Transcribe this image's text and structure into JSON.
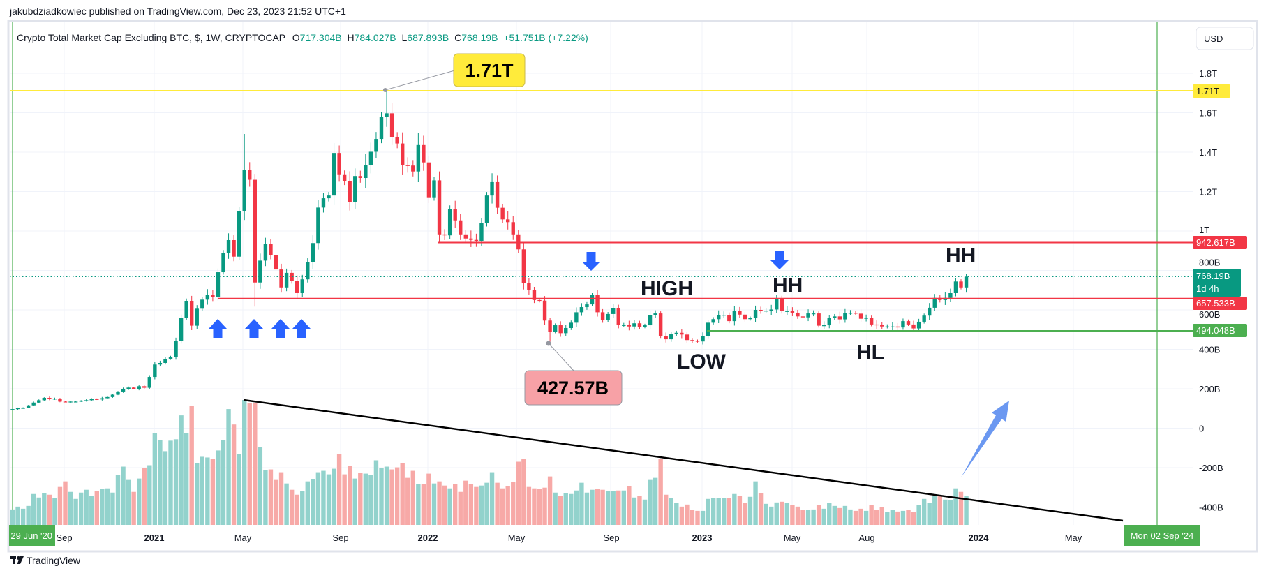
{
  "header": {
    "published": "jakubdziadkowiec published on TradingView.com, Dec 23, 2023 21:52 UTC+1"
  },
  "legend": {
    "symbol": "Crypto Total Market Cap Excluding BTC, $, 1W, CRYPTOCAP",
    "o_label": "O",
    "o_value": "717.304B",
    "h_label": "H",
    "h_value": "784.027B",
    "l_label": "L",
    "l_value": "687.893B",
    "c_label": "C",
    "c_value": "768.19B",
    "change": "+51.751B (+7.22%)"
  },
  "currency_button": "USD",
  "footer": {
    "brand": "TradingView"
  },
  "colors": {
    "bull": "#089981",
    "bear": "#f23645",
    "bull_volume": "#92d2cc",
    "bear_volume": "#f7a9a7",
    "ath_line": "#ffeb3b",
    "resistance": "#f23645",
    "support": "#4caf50",
    "arrow": "#2962ff"
  },
  "chart_data": {
    "type": "candlestick",
    "title": "Crypto Total Market Cap Excluding BTC",
    "interval": "1W",
    "unit": "B USD",
    "first_week": "29 Jun '20",
    "open_first": 95,
    "close": [
      97,
      101,
      103,
      116,
      130,
      142,
      154,
      148,
      150,
      135,
      133,
      135,
      135,
      140,
      142,
      148,
      146,
      152,
      158,
      170,
      186,
      199,
      206,
      200,
      213,
      205,
      260,
      323,
      331,
      352,
      362,
      443,
      561,
      646,
      520,
      606,
      652,
      677,
      665,
      791,
      890,
      954,
      870,
      1102,
      1310,
      1260,
      739,
      850,
      935,
      877,
      805,
      714,
      788,
      746,
      685,
      755,
      844,
      939,
      1119,
      1166,
      1180,
      1396,
      1284,
      1254,
      1148,
      1279,
      1269,
      1334,
      1402,
      1467,
      1580,
      1597,
      1475,
      1444,
      1334,
      1332,
      1302,
      1436,
      1348,
      1171,
      1257,
      983,
      978,
      1110,
      1054,
      983,
      962,
      955,
      948,
      1039,
      1180,
      1248,
      1118,
      1059,
      1045,
      983,
      907,
      738,
      700,
      650,
      647,
      546,
      490,
      522,
      482,
      508,
      535,
      588,
      614,
      628,
      675,
      588,
      549,
      579,
      608,
      523,
      523,
      516,
      532,
      514,
      522,
      574,
      582,
      467,
      451,
      476,
      484,
      475,
      447,
      443,
      440,
      469,
      535,
      553,
      575,
      575,
      543,
      595,
      576,
      553,
      558,
      600,
      595,
      596,
      602,
      658,
      594,
      594,
      586,
      567,
      562,
      582,
      582,
      520,
      522,
      558,
      567,
      552,
      585,
      585,
      581,
      555,
      561,
      526,
      523,
      516,
      516,
      516,
      511,
      543,
      526,
      506,
      540,
      571,
      611,
      661,
      650,
      661,
      685,
      744,
      714,
      768
    ],
    "wick_overrides": [
      {
        "index": 44,
        "high": 1492
      },
      {
        "index": 46,
        "low": 617
      },
      {
        "index": 71,
        "high": 1710
      },
      {
        "index": 72,
        "high": 1651
      },
      {
        "index": 102,
        "low": 427.57
      },
      {
        "index": 181,
        "high": 784.027,
        "low": 687.893
      }
    ],
    "volume": [
      22,
      26,
      23,
      27,
      44,
      39,
      45,
      43,
      38,
      54,
      62,
      47,
      37,
      46,
      50,
      41,
      48,
      51,
      52,
      46,
      71,
      83,
      64,
      47,
      66,
      81,
      85,
      131,
      121,
      105,
      120,
      122,
      156,
      131,
      170,
      88,
      97,
      96,
      94,
      106,
      121,
      165,
      143,
      101,
      178,
      173,
      174,
      111,
      78,
      79,
      64,
      75,
      59,
      50,
      43,
      48,
      62,
      65,
      75,
      77,
      72,
      80,
      101,
      72,
      84,
      66,
      74,
      73,
      71,
      92,
      81,
      83,
      79,
      82,
      88,
      67,
      77,
      58,
      58,
      73,
      59,
      62,
      56,
      52,
      58,
      47,
      63,
      58,
      54,
      56,
      60,
      75,
      60,
      52,
      55,
      61,
      90,
      94,
      54,
      52,
      51,
      53,
      69,
      46,
      41,
      45,
      44,
      49,
      60,
      46,
      50,
      51,
      50,
      48,
      48,
      49,
      49,
      55,
      39,
      41,
      36,
      64,
      67,
      94,
      43,
      38,
      31,
      26,
      29,
      21,
      20,
      20,
      37,
      38,
      38,
      38,
      38,
      44,
      41,
      31,
      40,
      62,
      45,
      30,
      26,
      32,
      33,
      31,
      28,
      26,
      21,
      21,
      22,
      28,
      23,
      31,
      27,
      24,
      27,
      22,
      20,
      23,
      20,
      28,
      21,
      25,
      18,
      21,
      19,
      20,
      21,
      18,
      28,
      37,
      31,
      41,
      42,
      36,
      35,
      52,
      47,
      41
    ],
    "y_ticks": [
      "1.8T",
      "1.6T",
      "1.4T",
      "1.2T",
      "1T",
      "800B",
      "600B",
      "400B",
      "200B",
      "0",
      "-200B",
      "-400B"
    ],
    "y_tick_values": [
      1800,
      1600,
      1400,
      1200,
      1000,
      800,
      600,
      400,
      200,
      0,
      -200,
      -400
    ],
    "x_ticks": [
      "Sep",
      "2021",
      "May",
      "Sep",
      "2022",
      "May",
      "Sep",
      "2023",
      "May",
      "Aug",
      "2024",
      "May"
    ],
    "ylim": [
      -480,
      1900
    ],
    "grid": true,
    "levels": [
      {
        "name": "ath",
        "value": 1710,
        "label": "1.71T"
      },
      {
        "name": "resistance-upper",
        "value": 942.617,
        "label": "942.617B"
      },
      {
        "name": "current",
        "value": 768.19,
        "label": "768.19B",
        "countdown": "1d 4h"
      },
      {
        "name": "resistance-lower",
        "value": 657.533,
        "label": "657.533B"
      },
      {
        "name": "support",
        "value": 494.048,
        "label": "494.048B"
      }
    ],
    "callouts": {
      "high": "1.71T",
      "low": "427.57B"
    },
    "annotations": {
      "high": "HIGH",
      "hh1": "HH",
      "hh2": "HH",
      "low": "LOW",
      "hl": "HL"
    },
    "crosshair_dates": {
      "start": "29 Jun '20",
      "end": "Mon 02 Sep '24"
    }
  }
}
